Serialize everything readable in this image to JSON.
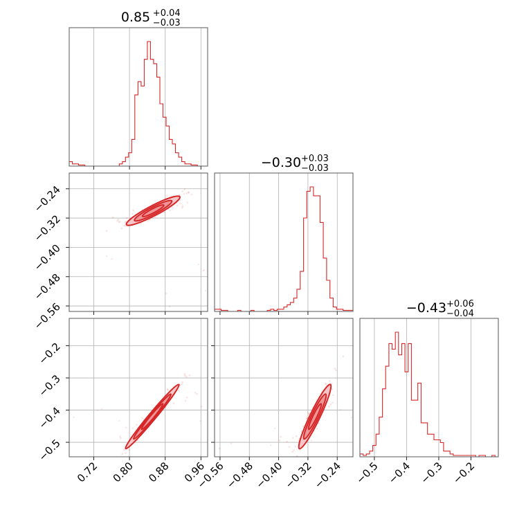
{
  "chart_data": {
    "type": "corner",
    "parameters": [
      {
        "title": {
          "median": "0.85",
          "upper": "+0.04",
          "lower": "−0.03"
        },
        "range": [
          0.665,
          0.975
        ],
        "ticks": [
          0.72,
          0.8,
          0.88,
          0.96
        ],
        "tick_labels": [
          "0.72",
          "0.80",
          "0.88",
          "0.96"
        ],
        "hist_bins": [
          0.665,
          0.672,
          0.679,
          0.686,
          0.693,
          0.7,
          0.707,
          0.714,
          0.721,
          0.728,
          0.735,
          0.742,
          0.749,
          0.756,
          0.763,
          0.77,
          0.777,
          0.784,
          0.791,
          0.798,
          0.805,
          0.812,
          0.819,
          0.826,
          0.833,
          0.84,
          0.847,
          0.854,
          0.861,
          0.868,
          0.875,
          0.882,
          0.889,
          0.896,
          0.903,
          0.91,
          0.917,
          0.924,
          0.931,
          0.938,
          0.945,
          0.952,
          0.959,
          0.966,
          0.975
        ],
        "hist_counts": [
          2,
          1,
          1,
          0.5,
          0.5,
          0,
          0,
          0,
          0,
          0,
          0,
          0,
          0,
          0,
          0,
          0,
          1,
          2,
          4,
          6,
          12,
          32,
          38,
          36,
          48,
          56,
          48,
          46,
          40,
          28,
          22,
          18,
          12,
          10,
          6,
          4,
          2,
          1,
          1,
          0.5,
          0.5,
          0,
          0,
          0
        ]
      },
      {
        "title": {
          "median": "−0.30",
          "upper": "+0.03",
          "lower": "−0.03"
        },
        "range": [
          -0.575,
          -0.197
        ],
        "ticks": [
          -0.56,
          -0.48,
          -0.4,
          -0.32,
          -0.24
        ],
        "tick_labels": [
          "−0.56",
          "−0.48",
          "−0.40",
          "−0.32",
          "−0.24"
        ],
        "hist_bins": [
          -0.575,
          -0.566,
          -0.557,
          -0.548,
          -0.539,
          -0.53,
          -0.521,
          -0.512,
          -0.503,
          -0.494,
          -0.485,
          -0.476,
          -0.467,
          -0.458,
          -0.449,
          -0.44,
          -0.431,
          -0.422,
          -0.413,
          -0.404,
          -0.395,
          -0.386,
          -0.377,
          -0.368,
          -0.359,
          -0.35,
          -0.341,
          -0.332,
          -0.323,
          -0.314,
          -0.305,
          -0.296,
          -0.287,
          -0.278,
          -0.269,
          -0.26,
          -0.251,
          -0.242,
          -0.233,
          -0.224,
          -0.215,
          -0.206,
          -0.197
        ],
        "hist_counts": [
          1,
          1,
          0.5,
          0.5,
          0,
          0,
          0,
          0.5,
          0,
          0,
          0,
          0.5,
          0,
          0,
          0,
          0,
          0.5,
          1,
          0.5,
          1,
          1,
          2,
          3,
          4,
          6,
          10,
          18,
          42,
          54,
          56,
          52,
          52,
          40,
          24,
          14,
          6,
          2,
          1,
          1,
          0.5,
          0.5,
          0.5
        ]
      },
      {
        "title": {
          "median": "−0.43",
          "upper": "+0.06",
          "lower": "−0.04"
        },
        "range": [
          -0.545,
          -0.115
        ],
        "ticks": [
          -0.5,
          -0.4,
          -0.3,
          -0.2
        ],
        "tick_labels": [
          "−0.5",
          "−0.4",
          "−0.3",
          "−0.2"
        ],
        "hist_bins": [
          -0.545,
          -0.535,
          -0.525,
          -0.515,
          -0.505,
          -0.495,
          -0.485,
          -0.475,
          -0.465,
          -0.455,
          -0.445,
          -0.435,
          -0.425,
          -0.415,
          -0.405,
          -0.395,
          -0.385,
          -0.375,
          -0.365,
          -0.355,
          -0.345,
          -0.335,
          -0.325,
          -0.315,
          -0.305,
          -0.295,
          -0.285,
          -0.275,
          -0.265,
          -0.255,
          -0.245,
          -0.235,
          -0.225,
          -0.215,
          -0.205,
          -0.195,
          -0.185,
          -0.175,
          -0.165,
          -0.155,
          -0.145,
          -0.135,
          -0.125,
          -0.115
        ],
        "hist_counts": [
          1,
          0.5,
          1,
          2,
          4,
          8,
          14,
          24,
          32,
          40,
          38,
          44,
          36,
          40,
          30,
          40,
          20,
          20,
          26,
          12,
          12,
          8,
          8,
          6,
          6,
          5,
          2,
          2,
          1,
          0.5,
          0.5,
          0.5,
          0.5,
          0.5,
          0.5,
          0.5,
          0,
          0.5,
          0.5,
          0,
          0,
          0.5,
          0
        ]
      }
    ],
    "correlations": [
      {
        "x_param": 0,
        "y_param": 1,
        "center": [
          0.853,
          -0.3
        ],
        "sd": [
          0.03,
          0.02
        ],
        "rho": 0.92
      },
      {
        "x_param": 0,
        "y_param": 2,
        "center": [
          0.851,
          -0.42
        ],
        "sd": [
          0.03,
          0.05
        ],
        "rho": 0.985
      },
      {
        "x_param": 1,
        "y_param": 2,
        "center": [
          -0.301,
          -0.42
        ],
        "sd": [
          0.022,
          0.05
        ],
        "rho": 0.94
      }
    ],
    "color": "#d62728",
    "grid": true
  }
}
